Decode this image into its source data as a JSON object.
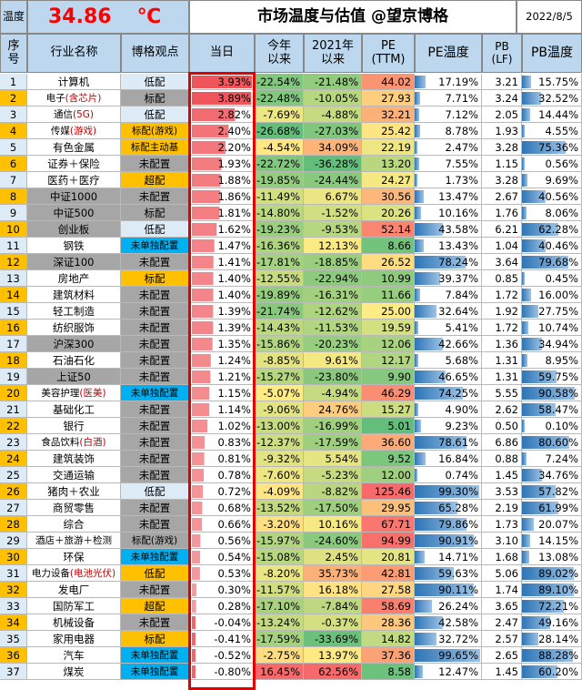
{
  "header": {
    "temp_label": "温度",
    "temp_value": "34.86",
    "temp_unit": "℃",
    "title": "市场温度与估值 @望京博格",
    "date": "2022/8/5"
  },
  "columns": {
    "idx": "序号",
    "name": "行业名称",
    "view": "博格观点",
    "day": "当日",
    "ytd": "今年以来",
    "since2021": "2021年以来",
    "pe": "PE (TTM)",
    "pe_temp": "PE温度",
    "pb": "PB (LF)",
    "pb_temp": "PB温度"
  },
  "colors": {
    "title_bg": "#bdd7ee",
    "idx_orange": "#ffc000",
    "gray": "#a6a6a6",
    "blue": "#00b0f0",
    "day_bar": "#f0555b",
    "pe_bar": "#2e75b6",
    "frame": "#e00000"
  },
  "chart_data": {
    "type": "table",
    "rows": [
      {
        "idx": "1",
        "name": "计算机",
        "name_style": "white",
        "view": "低配",
        "view_style": "light",
        "day": "3.93%",
        "ytd": "-22.54%",
        "s21": "-21.48%",
        "pe": "44.02",
        "pet": "17.19%",
        "pb": "3.21",
        "pbt": "15.75%"
      },
      {
        "idx": "2",
        "name": "电子",
        "name_red": "(含芯片)",
        "name_style": "white",
        "view": "标配",
        "view_style": "gray",
        "day": "3.89%",
        "ytd": "-22.48%",
        "s21": "-10.05%",
        "pe": "27.93",
        "pet": "7.71%",
        "pb": "3.24",
        "pbt": "32.52%"
      },
      {
        "idx": "3",
        "name": "通信",
        "name_red": "(5G)",
        "name_style": "white",
        "view": "低配",
        "view_style": "light",
        "day": "2.82%",
        "ytd": "-7.69%",
        "s21": "-4.88%",
        "pe": "32.21",
        "pet": "7.12%",
        "pb": "2.05",
        "pbt": "14.44%"
      },
      {
        "idx": "4",
        "name": "传媒",
        "name_red": "(游戏)",
        "name_style": "white",
        "view": "标配(游戏)",
        "view_style": "orange",
        "day": "2.40%",
        "ytd": "-26.68%",
        "s21": "-27.03%",
        "pe": "25.42",
        "pet": "8.78%",
        "pb": "1.93",
        "pbt": "4.55%"
      },
      {
        "idx": "5",
        "name": "有色金属",
        "name_style": "white",
        "view": "标配主动基",
        "view_style": "orange",
        "day": "2.20%",
        "ytd": "-4.54%",
        "s21": "34.09%",
        "pe": "22.19",
        "pet": "2.47%",
        "pb": "3.28",
        "pbt": "75.36%"
      },
      {
        "idx": "6",
        "name": "证券＋保险",
        "name_style": "white",
        "view": "未配置",
        "view_style": "gray",
        "day": "1.93%",
        "ytd": "-22.72%",
        "s21": "-36.28%",
        "pe": "13.20",
        "pet": "7.55%",
        "pb": "1.15",
        "pbt": "0.56%"
      },
      {
        "idx": "7",
        "name": "医药＋医疗",
        "name_style": "white",
        "view": "超配",
        "view_style": "orange",
        "day": "1.88%",
        "ytd": "-19.85%",
        "s21": "-24.44%",
        "pe": "24.27",
        "pet": "1.73%",
        "pb": "3.28",
        "pbt": "9.69%"
      },
      {
        "idx": "8",
        "name": "中证1000",
        "name_style": "gray",
        "view": "未配置",
        "view_style": "gray",
        "day": "1.86%",
        "ytd": "-11.49%",
        "s21": "6.67%",
        "pe": "30.56",
        "pet": "13.47%",
        "pb": "2.67",
        "pbt": "40.56%"
      },
      {
        "idx": "9",
        "name": "中证500",
        "name_style": "gray",
        "view": "标配",
        "view_style": "gray",
        "day": "1.81%",
        "ytd": "-14.80%",
        "s21": "-1.52%",
        "pe": "20.26",
        "pet": "10.16%",
        "pb": "1.76",
        "pbt": "8.06%"
      },
      {
        "idx": "10",
        "name": "创业板",
        "name_style": "gray",
        "view": "低配",
        "view_style": "light",
        "day": "1.62%",
        "ytd": "-19.23%",
        "s21": "-9.53%",
        "pe": "52.14",
        "pet": "43.58%",
        "pb": "6.21",
        "pbt": "62.28%"
      },
      {
        "idx": "11",
        "name": "钢铁",
        "name_style": "white",
        "view": "未单独配置",
        "view_style": "blue",
        "day": "1.47%",
        "ytd": "-16.36%",
        "s21": "12.13%",
        "pe": "8.66",
        "pet": "13.43%",
        "pb": "1.04",
        "pbt": "40.46%"
      },
      {
        "idx": "12",
        "name": "深证100",
        "name_style": "gray",
        "view": "未配置",
        "view_style": "gray",
        "day": "1.41%",
        "ytd": "-17.81%",
        "s21": "-18.85%",
        "pe": "26.52",
        "pet": "78.24%",
        "pb": "3.64",
        "pbt": "79.68%"
      },
      {
        "idx": "13",
        "name": "房地产",
        "name_style": "white",
        "view": "标配",
        "view_style": "orange",
        "day": "1.40%",
        "ytd": "-12.55%",
        "s21": "-22.94%",
        "pe": "10.99",
        "pet": "39.37%",
        "pb": "0.85",
        "pbt": "0.45%"
      },
      {
        "idx": "14",
        "name": "建筑材料",
        "name_style": "white",
        "view": "未配置",
        "view_style": "gray",
        "day": "1.40%",
        "ytd": "-19.89%",
        "s21": "-16.31%",
        "pe": "11.66",
        "pet": "7.84%",
        "pb": "1.72",
        "pbt": "16.00%"
      },
      {
        "idx": "15",
        "name": "轻工制造",
        "name_style": "white",
        "view": "未配置",
        "view_style": "gray",
        "day": "1.39%",
        "ytd": "-21.74%",
        "s21": "-12.62%",
        "pe": "25.00",
        "pet": "32.64%",
        "pb": "1.92",
        "pbt": "27.75%"
      },
      {
        "idx": "16",
        "name": "纺织服饰",
        "name_style": "white",
        "view": "未配置",
        "view_style": "gray",
        "day": "1.39%",
        "ytd": "-14.43%",
        "s21": "-11.53%",
        "pe": "19.59",
        "pet": "5.41%",
        "pb": "1.72",
        "pbt": "10.74%"
      },
      {
        "idx": "17",
        "name": "沪深300",
        "name_style": "gray",
        "view": "未配置",
        "view_style": "gray",
        "day": "1.35%",
        "ytd": "-15.86%",
        "s21": "-20.23%",
        "pe": "12.06",
        "pet": "42.66%",
        "pb": "1.36",
        "pbt": "34.94%"
      },
      {
        "idx": "18",
        "name": "石油石化",
        "name_style": "white",
        "view": "未配置",
        "view_style": "gray",
        "day": "1.24%",
        "ytd": "-8.85%",
        "s21": "9.61%",
        "pe": "12.17",
        "pet": "5.68%",
        "pb": "1.31",
        "pbt": "8.95%"
      },
      {
        "idx": "19",
        "name": "上证50",
        "name_style": "gray",
        "view": "未配置",
        "view_style": "gray",
        "day": "1.21%",
        "ytd": "-15.27%",
        "s21": "-23.80%",
        "pe": "9.90",
        "pet": "46.65%",
        "pb": "1.31",
        "pbt": "59.75%"
      },
      {
        "idx": "20",
        "name": "美容护理",
        "name_red": "(医美)",
        "name_style": "white",
        "view": "未单独配置",
        "view_style": "blue",
        "day": "1.15%",
        "ytd": "-5.07%",
        "s21": "-4.94%",
        "pe": "46.29",
        "pet": "74.25%",
        "pb": "5.55",
        "pbt": "90.58%"
      },
      {
        "idx": "21",
        "name": "基础化工",
        "name_style": "white",
        "view": "未配置",
        "view_style": "gray",
        "day": "1.14%",
        "ytd": "-9.06%",
        "s21": "24.76%",
        "pe": "15.27",
        "pet": "4.90%",
        "pb": "2.62",
        "pbt": "58.47%"
      },
      {
        "idx": "22",
        "name": "银行",
        "name_style": "white",
        "view": "未配置",
        "view_style": "gray",
        "day": "1.02%",
        "ytd": "-13.00%",
        "s21": "-16.99%",
        "pe": "5.01",
        "pet": "9.23%",
        "pb": "0.50",
        "pbt": "0.10%"
      },
      {
        "idx": "23",
        "name": "食品饮料",
        "name_red": "(白酒)",
        "name_style": "white",
        "view": "未配置",
        "view_style": "gray",
        "day": "0.83%",
        "ytd": "-12.37%",
        "s21": "-17.59%",
        "pe": "36.60",
        "pet": "78.61%",
        "pb": "6.86",
        "pbt": "80.60%"
      },
      {
        "idx": "24",
        "name": "建筑装饰",
        "name_style": "white",
        "view": "未配置",
        "view_style": "gray",
        "day": "0.81%",
        "ytd": "-9.32%",
        "s21": "5.54%",
        "pe": "9.52",
        "pet": "16.84%",
        "pb": "0.88",
        "pbt": "7.24%"
      },
      {
        "idx": "25",
        "name": "交通运输",
        "name_style": "white",
        "view": "未配置",
        "view_style": "gray",
        "day": "0.78%",
        "ytd": "-7.60%",
        "s21": "-5.23%",
        "pe": "12.00",
        "pet": "0.74%",
        "pb": "1.45",
        "pbt": "34.76%"
      },
      {
        "idx": "26",
        "name": "猪肉＋农业",
        "name_style": "white",
        "view": "低配",
        "view_style": "light",
        "day": "0.72%",
        "ytd": "-4.09%",
        "s21": "-8.82%",
        "pe": "125.46",
        "pet": "99.30%",
        "pb": "3.53",
        "pbt": "57.82%"
      },
      {
        "idx": "27",
        "name": "商贸零售",
        "name_style": "white",
        "view": "未配置",
        "view_style": "gray",
        "day": "0.68%",
        "ytd": "-13.52%",
        "s21": "-17.50%",
        "pe": "29.95",
        "pet": "65.28%",
        "pb": "2.19",
        "pbt": "61.99%"
      },
      {
        "idx": "28",
        "name": "综合",
        "name_style": "white",
        "view": "未配置",
        "view_style": "gray",
        "day": "0.66%",
        "ytd": "-3.20%",
        "s21": "10.16%",
        "pe": "67.71",
        "pet": "79.86%",
        "pb": "1.73",
        "pbt": "20.07%"
      },
      {
        "idx": "29",
        "name": "酒店＋旅游＋检测",
        "name_style": "white",
        "view": "标配(游戏)",
        "view_style": "gray",
        "day": "0.56%",
        "ytd": "-15.97%",
        "s21": "-24.60%",
        "pe": "94.99",
        "pet": "90.91%",
        "pb": "3.10",
        "pbt": "14.15%"
      },
      {
        "idx": "30",
        "name": "环保",
        "name_style": "white",
        "view": "未单独配置",
        "view_style": "blue",
        "day": "0.54%",
        "ytd": "-15.08%",
        "s21": "2.45%",
        "pe": "20.81",
        "pet": "14.71%",
        "pb": "1.68",
        "pbt": "13.08%"
      },
      {
        "idx": "31",
        "name": "电力设备",
        "name_red": "(电池光伏)",
        "name_style": "white",
        "view": "低配",
        "view_style": "orange",
        "day": "0.53%",
        "ytd": "-8.20%",
        "s21": "35.73%",
        "pe": "42.81",
        "pet": "59.63%",
        "pb": "5.06",
        "pbt": "89.02%"
      },
      {
        "idx": "32",
        "name": "发电厂",
        "name_style": "white",
        "view": "未配置",
        "view_style": "gray",
        "day": "0.30%",
        "ytd": "-11.57%",
        "s21": "16.18%",
        "pe": "27.58",
        "pet": "90.11%",
        "pb": "1.74",
        "pbt": "89.10%"
      },
      {
        "idx": "33",
        "name": "国防军工",
        "name_style": "white",
        "view": "超配",
        "view_style": "orange",
        "day": "0.28%",
        "ytd": "-17.10%",
        "s21": "-7.84%",
        "pe": "58.69",
        "pet": "26.24%",
        "pb": "3.65",
        "pbt": "72.21%"
      },
      {
        "idx": "34",
        "name": "机械设备",
        "name_style": "white",
        "view": "未配置",
        "view_style": "gray",
        "day": "-0.04%",
        "ytd": "-13.24%",
        "s21": "-0.37%",
        "pe": "28.36",
        "pet": "42.58%",
        "pb": "2.47",
        "pbt": "49.16%"
      },
      {
        "idx": "35",
        "name": "家用电器",
        "name_style": "white",
        "view": "标配",
        "view_style": "orange",
        "day": "-0.41%",
        "ytd": "-17.59%",
        "s21": "-33.69%",
        "pe": "14.82",
        "pet": "32.72%",
        "pb": "2.57",
        "pbt": "28.14%"
      },
      {
        "idx": "36",
        "name": "汽车",
        "name_style": "white",
        "view": "未单独配置",
        "view_style": "blue",
        "day": "-0.52%",
        "ytd": "-2.75%",
        "s21": "13.97%",
        "pe": "37.36",
        "pet": "99.65%",
        "pb": "2.65",
        "pbt": "88.28%"
      },
      {
        "idx": "37",
        "name": "煤炭",
        "name_style": "white",
        "view": "未单独配置",
        "view_style": "blue",
        "day": "-0.80%",
        "ytd": "16.45%",
        "s21": "62.56%",
        "pe": "8.58",
        "pet": "12.47%",
        "pb": "1.45",
        "pbt": "60.20%"
      }
    ]
  }
}
